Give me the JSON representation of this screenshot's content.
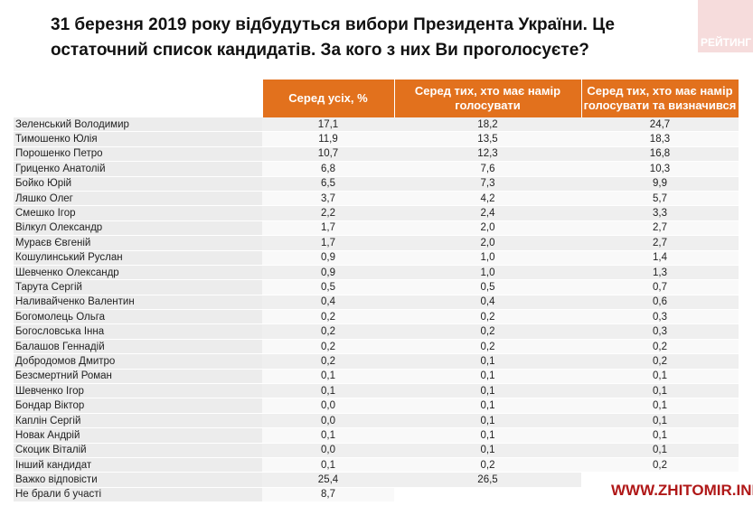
{
  "title": "31 березня 2019 року відбудуться вибори Президента України. Це остаточний список кандидатів. За кого з них Ви проголосуєте?",
  "badge": "РЕЙТИНГ",
  "watermark": "WWW.ZHITOMIR.INFO",
  "columns": [
    "Серед усіх, %",
    "Серед тих, хто має намір голосувати",
    "Серед тих, хто має намір голосувати та визначився"
  ],
  "rows": [
    [
      "Зеленський Володимир",
      "17,1",
      "18,2",
      "24,7"
    ],
    [
      "Тимошенко Юлія",
      "11,9",
      "13,5",
      "18,3"
    ],
    [
      "Порошенко Петро",
      "10,7",
      "12,3",
      "16,8"
    ],
    [
      "Гриценко Анатолій",
      "6,8",
      "7,6",
      "10,3"
    ],
    [
      "Бойко Юрій",
      "6,5",
      "7,3",
      "9,9"
    ],
    [
      "Ляшко Олег",
      "3,7",
      "4,2",
      "5,7"
    ],
    [
      "Смешко Ігор",
      "2,2",
      "2,4",
      "3,3"
    ],
    [
      "Вілкул Олександр",
      "1,7",
      "2,0",
      "2,7"
    ],
    [
      "Мураєв Євгеній",
      "1,7",
      "2,0",
      "2,7"
    ],
    [
      "Кошулинський Руслан",
      "0,9",
      "1,0",
      "1,4"
    ],
    [
      "Шевченко Олександр",
      "0,9",
      "1,0",
      "1,3"
    ],
    [
      "Тарута Сергій",
      "0,5",
      "0,5",
      "0,7"
    ],
    [
      "Наливайченко Валентин",
      "0,4",
      "0,4",
      "0,6"
    ],
    [
      "Богомолець Ольга",
      "0,2",
      "0,2",
      "0,3"
    ],
    [
      "Богословська Інна",
      "0,2",
      "0,2",
      "0,3"
    ],
    [
      "Балашов Геннадій",
      "0,2",
      "0,2",
      "0,2"
    ],
    [
      "Добродомов Дмитро",
      "0,2",
      "0,1",
      "0,2"
    ],
    [
      "Безсмертний Роман",
      "0,1",
      "0,1",
      "0,1"
    ],
    [
      "Шевченко Ігор",
      "0,1",
      "0,1",
      "0,1"
    ],
    [
      "Бондар Віктор",
      "0,0",
      "0,1",
      "0,1"
    ],
    [
      "Каплін Сергій",
      "0,0",
      "0,1",
      "0,1"
    ],
    [
      "Новак Андрій",
      "0,1",
      "0,1",
      "0,1"
    ],
    [
      "Скоцик Віталій",
      "0,0",
      "0,1",
      "0,1"
    ],
    [
      "Інший кандидат",
      "0,1",
      "0,2",
      "0,2"
    ],
    [
      "Важко відповісти",
      "25,4",
      "26,5",
      ""
    ],
    [
      "Не брали б участі",
      "8,7",
      "",
      ""
    ]
  ]
}
